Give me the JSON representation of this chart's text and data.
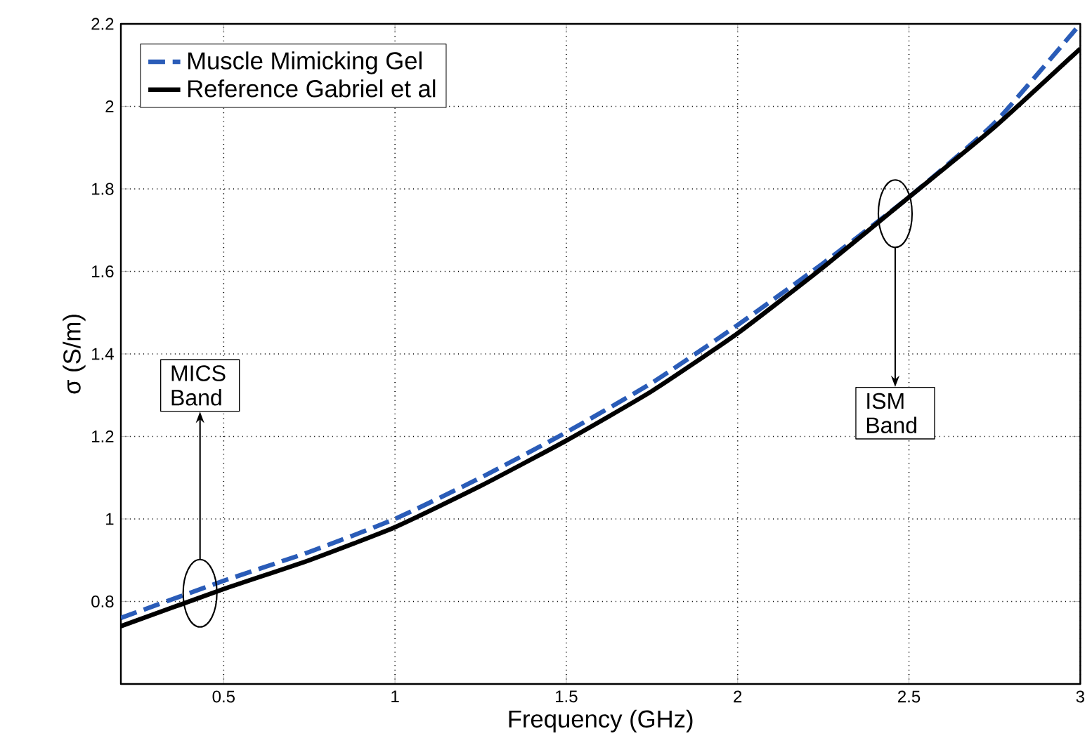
{
  "chart_data": {
    "type": "line",
    "xlabel": "Frequency (GHz)",
    "ylabel": "σ (S/m)",
    "x": [
      0.2,
      0.5,
      0.75,
      1,
      1.25,
      1.5,
      1.75,
      2,
      2.25,
      2.5,
      2.75,
      3
    ],
    "series": [
      {
        "name": "Muscle Mimicking Gel",
        "color": "#2a5cb8",
        "line_style": "dashed",
        "values": [
          0.76,
          0.85,
          0.92,
          1.0,
          1.1,
          1.21,
          1.33,
          1.47,
          1.62,
          1.78,
          1.96,
          2.2
        ]
      },
      {
        "name": "Reference Gabriel et al",
        "color": "#000000",
        "line_style": "solid",
        "values": [
          0.74,
          0.83,
          0.9,
          0.98,
          1.08,
          1.19,
          1.31,
          1.45,
          1.61,
          1.78,
          1.95,
          2.14
        ]
      }
    ],
    "xlim": [
      0.2,
      3
    ],
    "xticks": [
      0.5,
      1,
      1.5,
      2,
      2.5,
      3
    ],
    "ylim": [
      0.6,
      2.2
    ],
    "yticks": [
      0.8,
      1,
      1.2,
      1.4,
      1.6,
      1.8,
      2,
      2.2
    ],
    "grid": true,
    "legend": "top left",
    "marker": "none",
    "annotations": [
      "MICS Band",
      "ISM Band"
    ]
  }
}
